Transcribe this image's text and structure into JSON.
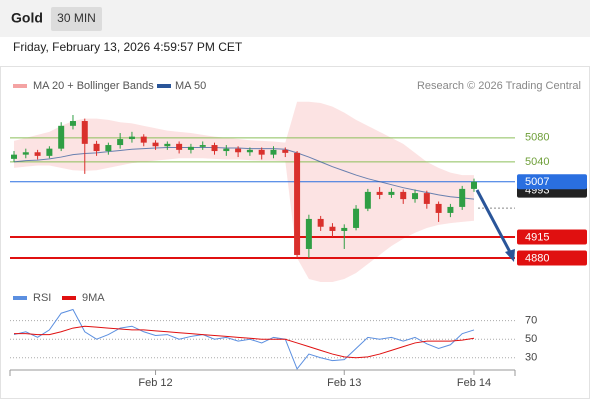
{
  "header": {
    "title": "Gold",
    "interval": "30 MIN",
    "timestamp": "Friday, February 13, 2026 4:59:57 PM CET"
  },
  "chart_data": [
    {
      "type": "candlestick",
      "credit": "Research © 2026 Trading Central",
      "categories": [
        null,
        null,
        null,
        null,
        null,
        null,
        null,
        null,
        null,
        null,
        null,
        null,
        "Feb 12",
        null,
        null,
        null,
        null,
        null,
        null,
        null,
        null,
        null,
        null,
        null,
        null,
        null,
        null,
        null,
        "Feb 13",
        null,
        null,
        null,
        null,
        null,
        null,
        null,
        null,
        null,
        null,
        "Feb 14"
      ],
      "open": [
        5045,
        5052,
        5056,
        5050,
        5062,
        5100,
        5108,
        5070,
        5058,
        5068,
        5078,
        5082,
        5072,
        5066,
        5070,
        5060,
        5065,
        5068,
        5058,
        5062,
        5056,
        5060,
        5052,
        5060,
        5055,
        4895,
        4945,
        4932,
        4925,
        4930,
        4962,
        4990,
        4985,
        4990,
        4978,
        4988,
        4970,
        4955,
        4965,
        4995
      ],
      "high": [
        5058,
        5062,
        5060,
        5066,
        5106,
        5118,
        5112,
        5075,
        5072,
        5088,
        5090,
        5086,
        5076,
        5074,
        5074,
        5070,
        5074,
        5072,
        5068,
        5066,
        5064,
        5064,
        5066,
        5064,
        5058,
        4952,
        4950,
        4938,
        4936,
        4968,
        4995,
        4998,
        4996,
        4994,
        4994,
        4992,
        4974,
        4970,
        5000,
        5012
      ],
      "low": [
        5040,
        5046,
        5044,
        5046,
        5058,
        5094,
        5020,
        5050,
        5052,
        5062,
        5072,
        5066,
        5060,
        5060,
        5054,
        5054,
        5060,
        5052,
        5050,
        5048,
        5050,
        5044,
        5046,
        5048,
        4880,
        4880,
        4925,
        4915,
        4895,
        4926,
        4958,
        4978,
        4980,
        4970,
        4972,
        4962,
        4940,
        4948,
        4960,
        4990
      ],
      "close": [
        5052,
        5056,
        5050,
        5062,
        5100,
        5108,
        5070,
        5058,
        5068,
        5078,
        5082,
        5072,
        5066,
        5070,
        5060,
        5065,
        5068,
        5058,
        5062,
        5056,
        5060,
        5052,
        5060,
        5055,
        4885,
        4945,
        4932,
        4925,
        4930,
        4962,
        4990,
        4985,
        4990,
        4978,
        4988,
        4970,
        4955,
        4965,
        4995,
        5007
      ],
      "up_color": "#2f9e44",
      "down_color": "#d9302c",
      "bands": {
        "name": "MA 20 + Bollinger Bands",
        "color": "#f4a3a3",
        "upper": [
          5075,
          5080,
          5085,
          5090,
          5100,
          5108,
          5112,
          5112,
          5110,
          5106,
          5104,
          5100,
          5096,
          5092,
          5090,
          5088,
          5085,
          5082,
          5080,
          5078,
          5076,
          5075,
          5074,
          5072,
          5140,
          5140,
          5138,
          5132,
          5122,
          5110,
          5100,
          5090,
          5080,
          5070,
          5055,
          5040,
          5030,
          5022,
          5018,
          5018
        ],
        "lower": [
          5030,
          5032,
          5034,
          5034,
          5030,
          5026,
          5025,
          5026,
          5030,
          5034,
          5038,
          5040,
          5042,
          5044,
          5046,
          5046,
          5046,
          5045,
          5044,
          5044,
          5043,
          5042,
          5042,
          5041,
          4880,
          4845,
          4840,
          4840,
          4845,
          4855,
          4870,
          4885,
          4900,
          4912,
          4922,
          4930,
          4935,
          4938,
          4940,
          4942
        ]
      },
      "series": [
        {
          "name": "MA 50",
          "color": "#2a5599",
          "values": [
            5040,
            5042,
            5043,
            5045,
            5048,
            5052,
            5054,
            5055,
            5057,
            5059,
            5061,
            5062,
            5063,
            5064,
            5064,
            5064,
            5064,
            5064,
            5063,
            5063,
            5062,
            5062,
            5062,
            5061,
            5055,
            5048,
            5040,
            5032,
            5025,
            5018,
            5012,
            5007,
            5002,
            4997,
            4993,
            4989,
            4985,
            4982,
            4980,
            4978
          ]
        }
      ],
      "levels": [
        {
          "value": 5080,
          "color": "#8cbf5a",
          "boxed": false
        },
        {
          "value": 5040,
          "color": "#8cbf5a",
          "boxed": false
        },
        {
          "value": 4993,
          "color": "#222222",
          "boxed": true
        },
        {
          "value": 5007,
          "color": "#2a6fe0",
          "boxed": true
        },
        {
          "value": 4915,
          "color": "#e01010",
          "boxed": true
        },
        {
          "value": 4880,
          "color": "#e01010",
          "boxed": true
        }
      ],
      "ylim": [
        4835,
        5143
      ]
    },
    {
      "type": "line",
      "series": [
        {
          "name": "RSI",
          "color": "#5b8fe0",
          "values": [
            55,
            58,
            52,
            60,
            78,
            82,
            58,
            50,
            55,
            62,
            64,
            58,
            54,
            55,
            50,
            53,
            55,
            50,
            52,
            48,
            50,
            46,
            52,
            50,
            18,
            34,
            30,
            27,
            28,
            40,
            52,
            50,
            52,
            48,
            52,
            45,
            40,
            44,
            56,
            60
          ]
        },
        {
          "name": "9MA",
          "color": "#e01010",
          "values": [
            56,
            56,
            55,
            55,
            58,
            62,
            64,
            63,
            62,
            61,
            60,
            60,
            59,
            58,
            57,
            56,
            55,
            54,
            53,
            52,
            51,
            50,
            50,
            50,
            46,
            42,
            38,
            34,
            31,
            30,
            31,
            34,
            38,
            42,
            46,
            48,
            48,
            48,
            49,
            51
          ]
        }
      ],
      "ylim": [
        19,
        103
      ],
      "yticks": [
        30,
        50,
        70
      ]
    }
  ]
}
